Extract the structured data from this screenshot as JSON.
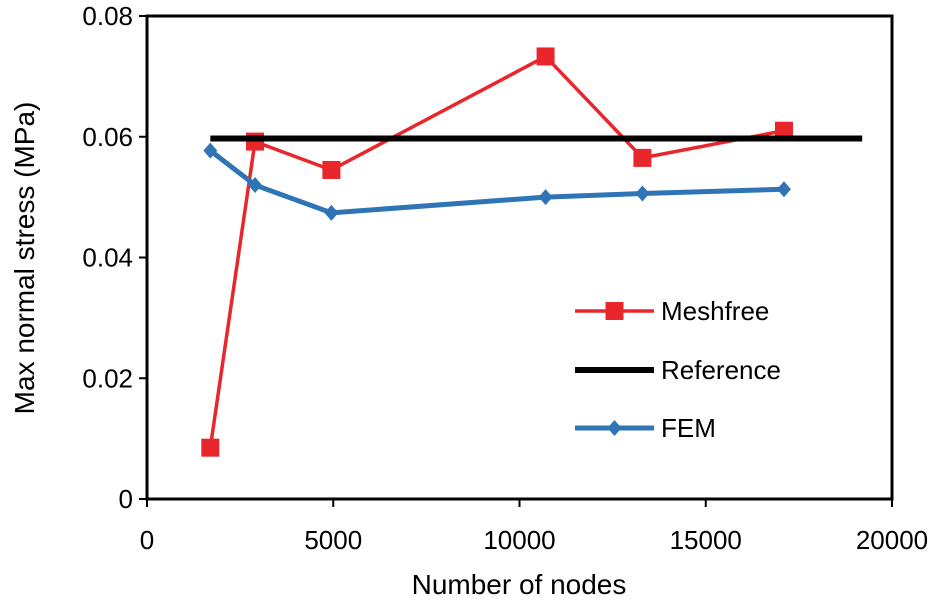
{
  "chart_data": {
    "type": "line",
    "title": "",
    "xlabel": "Number of nodes",
    "ylabel": "Max normal stress (MPa)",
    "xlim": [
      0,
      20000
    ],
    "ylim": [
      0,
      0.08
    ],
    "xticks": [
      0,
      5000,
      10000,
      15000,
      20000
    ],
    "xtick_labels": [
      "0",
      "5000",
      "10000",
      "15000",
      "20000"
    ],
    "yticks": [
      0,
      0.02,
      0.04,
      0.06,
      0.08
    ],
    "ytick_labels": [
      "0",
      "0.02",
      "0.04",
      "0.06",
      "0.08"
    ],
    "grid": false,
    "legend_position": "center-right",
    "series": [
      {
        "name": "Meshfree",
        "color": "#e8262b",
        "marker": "square",
        "x": [
          1700,
          2900,
          4950,
          10700,
          13300,
          17100
        ],
        "y": [
          0.0085,
          0.0592,
          0.0545,
          0.0733,
          0.0565,
          0.061
        ]
      },
      {
        "name": "Reference",
        "color": "#000000",
        "marker": "none",
        "x": [
          1700,
          19200
        ],
        "y": [
          0.0597,
          0.0597
        ]
      },
      {
        "name": "FEM",
        "color": "#2f75b5",
        "marker": "diamond",
        "x": [
          1700,
          2900,
          4950,
          10700,
          13300,
          17100
        ],
        "y": [
          0.0577,
          0.052,
          0.0474,
          0.05,
          0.0506,
          0.0513
        ]
      }
    ]
  }
}
